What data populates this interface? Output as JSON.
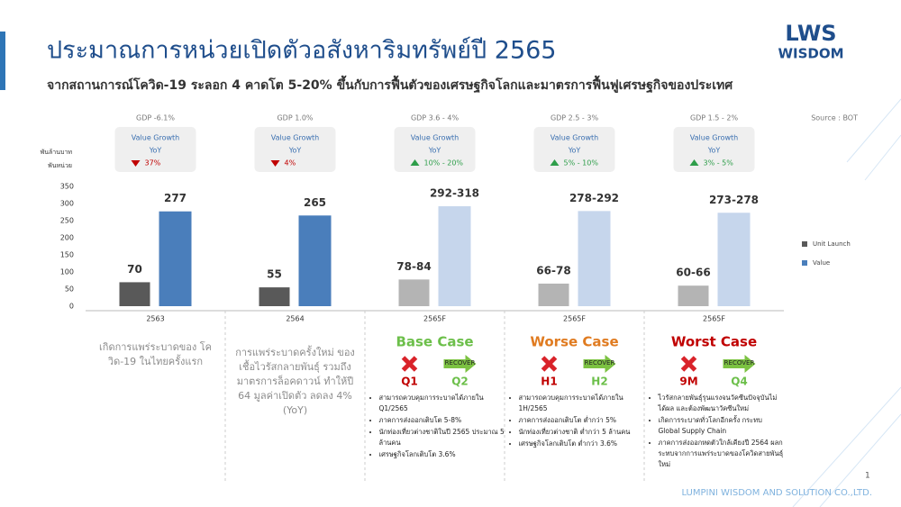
{
  "header": {
    "title": "ประมาณการหน่วยเปิดตัวอสังหาริมทรัพย์ปี 2565",
    "subtitle": "จากสถานการณ์โควิด-19 ระลอก 4 คาดโต 5-20% ขึ้นกับการฟื้นตัวของเศรษฐกิจโลกและมาตรการฟื้นฟูเศรษฐกิจของประเทศ",
    "logo": [
      "LWS",
      "WISDOM"
    ]
  },
  "source": "Source : BOT",
  "chart_data": {
    "type": "bar",
    "ylabel": [
      "พันล้านบาท",
      "พันหน่วย"
    ],
    "categories": [
      "2563",
      "2564",
      "2565F",
      "2565F",
      "2565F"
    ],
    "series": [
      {
        "name": "Unit Launch",
        "color": "#595959",
        "colors": [
          "#595959",
          "#595959",
          "#b4b4b4",
          "#b4b4b4",
          "#b4b4b4"
        ],
        "values": [
          70,
          55,
          78,
          66,
          60
        ],
        "value_labels": [
          "70",
          "55",
          "78-84",
          "66-78",
          "60-66"
        ]
      },
      {
        "name": "Value",
        "color": "#4a7ebb",
        "colors": [
          "#4a7ebb",
          "#4a7ebb",
          "#c6d6ec",
          "#c6d6ec",
          "#c6d6ec"
        ],
        "values": [
          277,
          265,
          292,
          278,
          273
        ],
        "value_labels": [
          "277",
          "265",
          "292-318",
          "278-292",
          "273-278"
        ]
      }
    ],
    "ylim": [
      0,
      350
    ],
    "yticks": [
      0,
      50,
      100,
      150,
      200,
      250,
      300,
      350
    ],
    "grid": false,
    "annotations": [
      {
        "gdp": "GDP -6.1%",
        "growth_title": "Value Growth",
        "growth_yoy": "YoY",
        "growth_value": "37%",
        "direction": "down"
      },
      {
        "gdp": "GDP 1.0%",
        "growth_title": "Value Growth",
        "growth_yoy": "YoY",
        "growth_value": "4%",
        "direction": "down"
      },
      {
        "gdp": "GDP 3.6 - 4%",
        "growth_title": "Value Growth",
        "growth_yoy": "YoY",
        "growth_value": "10% - 20%",
        "direction": "up"
      },
      {
        "gdp": "GDP 2.5 - 3%",
        "growth_title": "Value Growth",
        "growth_yoy": "YoY",
        "growth_value": "5% - 10%",
        "direction": "up"
      },
      {
        "gdp": "GDP 1.5 - 2%",
        "growth_title": "Value Growth",
        "growth_yoy": "YoY",
        "growth_value": "3% - 5%",
        "direction": "up"
      }
    ]
  },
  "notes": [
    "เกิดการแพร่ระบาดของ โควิด-19 ในไทยครั้งแรก",
    "การแพร่ระบาดครั้งใหม่ ของเชื้อไวรัสกลายพันธุ์ รวมถึงมาตรการล็อคดาวน์ ทำให้ปี 64 มูลค่าเปิดตัว ลดลง 4% (YoY)"
  ],
  "scenarios": [
    {
      "title": "Base Case",
      "color": "#6cbf4a",
      "fail_period": "Q1",
      "recover_label": "RECOVER",
      "recover_period": "Q2",
      "bullets": [
        "สามารถควบคุมการระบาดได้ภายใน Q1/2565",
        "ภาคการส่งออกเติบโต 5-8%",
        "นักท่องเที่ยวต่างชาติในปี 2565 ประมาณ 5 ล้านคน",
        "เศรษฐกิจโลกเติบโต 3.6%"
      ]
    },
    {
      "title": "Worse Case",
      "color": "#e07b20",
      "fail_period": "H1",
      "recover_label": "RECOVER",
      "recover_period": "H2",
      "bullets": [
        "สามารถควบคุมการระบาดได้ภายใน 1H/2565",
        "ภาคการส่งออกเติบโต ต่ำกว่า 5%",
        "นักท่องเที่ยวต่างชาติ ต่ำกว่า 5 ล้านคน",
        "เศรษฐกิจโลกเติบโต ต่ำกว่า 3.6%"
      ]
    },
    {
      "title": "Worst Case",
      "color": "#c00000",
      "fail_period": "9M",
      "recover_label": "RECOVER",
      "recover_period": "Q4",
      "bullets": [
        "ไวรัสกลายพันธุ์รุนแรงจนวัคซีนปัจจุบันไม่ได้ผล และต้องพัฒนาวัคซีนใหม่",
        "เกิดการระบาดทั่วโลกอีกครั้ง กระทบ Global Supply Chain",
        "ภาคการส่งออกหดตัวใกล้เคียงปี 2564 ผลกระทบจากการแพร่ระบาดของโควิดสายพันธุ์ใหม่"
      ]
    }
  ],
  "page_number": "1",
  "footer": "LUMPINI WISDOM AND SOLUTION CO.,LTD."
}
